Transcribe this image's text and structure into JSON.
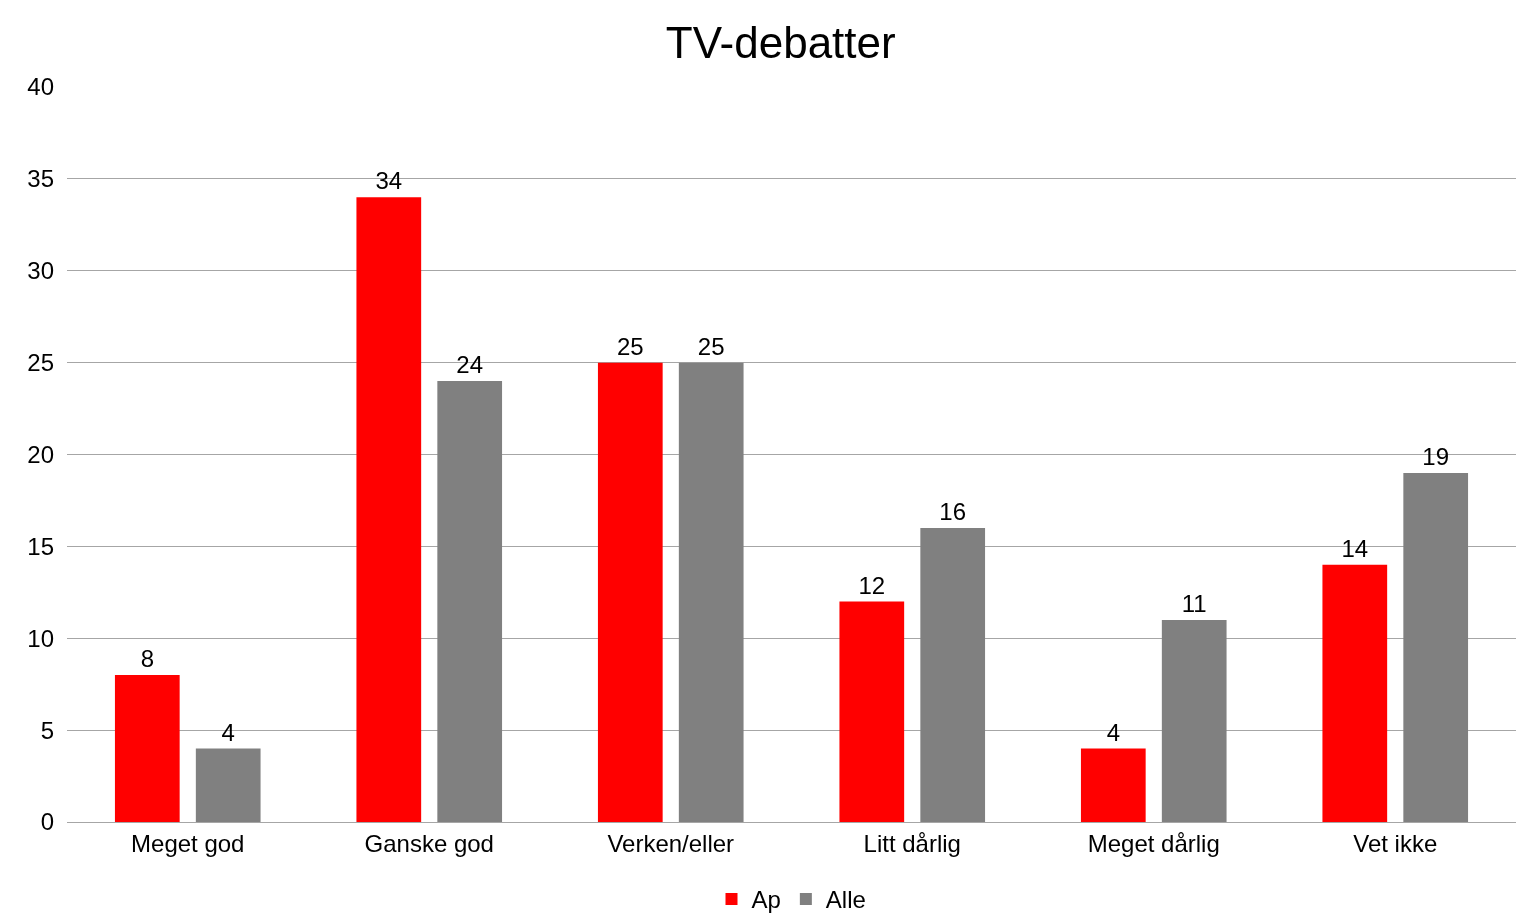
{
  "chart_data": {
    "type": "bar",
    "title": "TV-debatter",
    "categories": [
      "Meget god",
      "Ganske god",
      "Verken/eller",
      "Litt dårlig",
      "Meget dårlig",
      "Vet ikke"
    ],
    "series": [
      {
        "name": "Ap",
        "color": "#ff0000",
        "values": [
          8,
          34,
          25,
          12,
          4,
          14
        ]
      },
      {
        "name": "Alle",
        "color": "#808080",
        "values": [
          4,
          24,
          25,
          16,
          11,
          19
        ]
      }
    ],
    "ylim": [
      0,
      40
    ],
    "yticks": [
      0,
      5,
      10,
      15,
      20,
      25,
      30,
      35,
      40
    ],
    "grid": "y",
    "legend": "bottom",
    "data_labels": true
  }
}
